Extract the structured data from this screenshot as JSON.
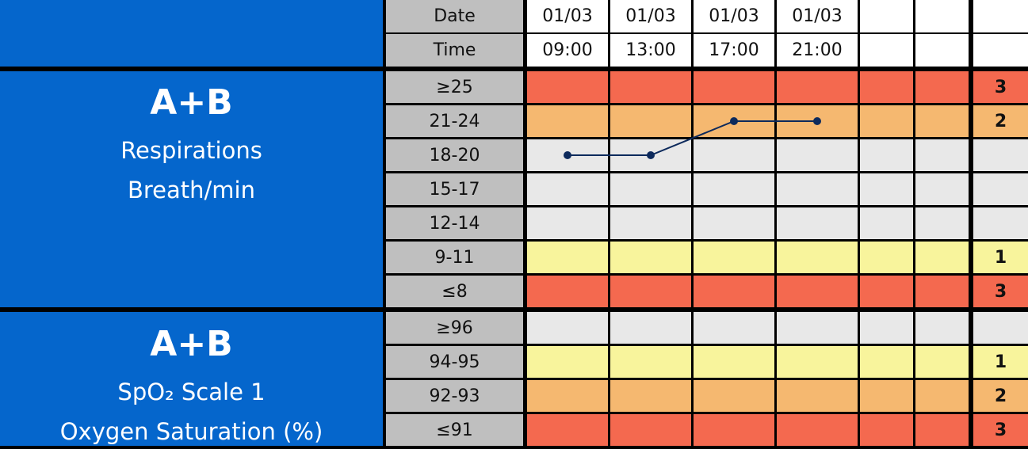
{
  "header": {
    "date_label": "Date",
    "time_label": "Time",
    "dates": [
      "01/03",
      "01/03",
      "01/03",
      "01/03"
    ],
    "times": [
      "09:00",
      "13:00",
      "17:00",
      "21:00"
    ]
  },
  "sections": [
    {
      "title": "A+B",
      "lines": [
        "Respirations",
        "Breath/min"
      ],
      "rows": [
        {
          "label": "≥25",
          "score": 3,
          "color": "#f4694f"
        },
        {
          "label": "21-24",
          "score": 2,
          "color": "#f5b870"
        },
        {
          "label": "18-20",
          "color": "#e8e8e8"
        },
        {
          "label": "15-17",
          "color": "#e8e8e8"
        },
        {
          "label": "12-14",
          "color": "#e8e8e8"
        },
        {
          "label": "9-11",
          "score": 1,
          "color": "#f8f49c"
        },
        {
          "label": "≤8",
          "score": 3,
          "color": "#f4694f"
        }
      ],
      "readings": [
        "18-20",
        "18-20",
        "21-24",
        "21-24"
      ]
    },
    {
      "title": "A+B",
      "lines": [
        "SpO₂ Scale 1",
        "Oxygen Saturation (%)"
      ],
      "rows": [
        {
          "label": "≥96",
          "color": "#e8e8e8"
        },
        {
          "label": "94-95",
          "score": 1,
          "color": "#f8f49c"
        },
        {
          "label": "92-93",
          "score": 2,
          "color": "#f5b870"
        },
        {
          "label": "≤91",
          "score": 3,
          "color": "#f4694f"
        }
      ]
    }
  ]
}
